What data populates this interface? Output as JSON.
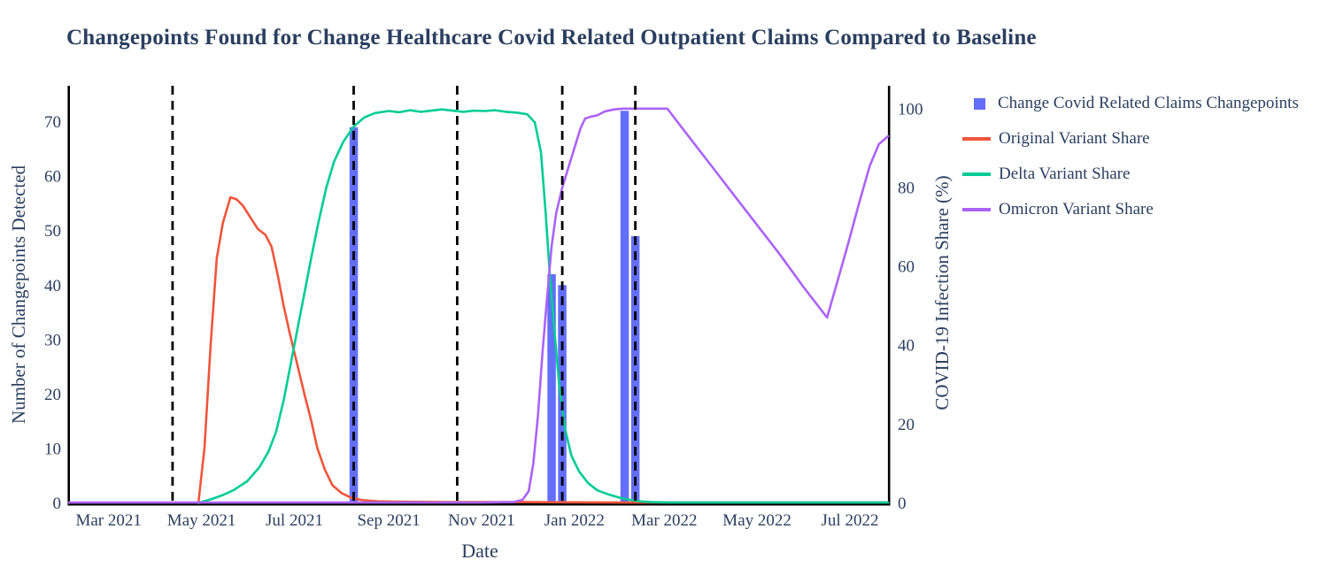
{
  "title": "Changepoints Found for Change Healthcare Covid Related Outpatient Claims Compared to Baseline",
  "background": "#ffffff",
  "text_color": "#2a3f5f",
  "chart_data": {
    "type": "bar+line combo, dual y-axis time series",
    "grid": false,
    "legend_position": "outside-top-right",
    "x_axis": {
      "label": "Date",
      "range": [
        "2021-02-03",
        "2022-07-26"
      ],
      "ticks": [
        {
          "date": "2021-03-01",
          "label": "Mar 2021"
        },
        {
          "date": "2021-05-01",
          "label": "May 2021"
        },
        {
          "date": "2021-07-01",
          "label": "Jul 2021"
        },
        {
          "date": "2021-09-01",
          "label": "Sep 2021"
        },
        {
          "date": "2021-11-01",
          "label": "Nov 2021"
        },
        {
          "date": "2022-01-01",
          "label": "Jan 2022"
        },
        {
          "date": "2022-03-01",
          "label": "Mar 2022"
        },
        {
          "date": "2022-05-01",
          "label": "May 2022"
        },
        {
          "date": "2022-07-01",
          "label": "Jul 2022"
        }
      ]
    },
    "y_left": {
      "label": "Number of Changepoints Detected",
      "range": [
        0,
        76.6
      ],
      "ticks": [
        0,
        10,
        20,
        30,
        40,
        50,
        60,
        70
      ]
    },
    "y_right": {
      "label": "COVID-19 Infection Share (%)",
      "range": [
        0,
        105.8
      ],
      "ticks": [
        0,
        20,
        40,
        60,
        80,
        100
      ]
    },
    "bars": {
      "name": "Change Covid Related Claims Changepoints",
      "color": "#636EFA",
      "axis": "left",
      "width_days": 5.5,
      "points": [
        [
          "2021-08-09",
          69
        ],
        [
          "2021-12-17",
          42
        ],
        [
          "2021-12-24",
          40
        ],
        [
          "2022-02-03",
          72
        ],
        [
          "2022-02-10",
          49
        ]
      ]
    },
    "changepoint_lines": {
      "style": "black dashed vertical line",
      "dates": [
        "2021-04-12",
        "2021-08-09",
        "2021-10-16",
        "2021-12-24",
        "2022-02-10"
      ]
    },
    "series": [
      {
        "id": "original-variant",
        "name": "Original Variant Share",
        "color": "#EF553B",
        "axis": "right",
        "points": [
          [
            "2021-04-29",
            0
          ],
          [
            "2021-05-03",
            14
          ],
          [
            "2021-05-07",
            40
          ],
          [
            "2021-05-11",
            62
          ],
          [
            "2021-05-15",
            71
          ],
          [
            "2021-05-20",
            77.5
          ],
          [
            "2021-05-24",
            77
          ],
          [
            "2021-05-28",
            75.5
          ],
          [
            "2021-06-02",
            72.5
          ],
          [
            "2021-06-07",
            69.5
          ],
          [
            "2021-06-12",
            68
          ],
          [
            "2021-06-16",
            65
          ],
          [
            "2021-06-20",
            58
          ],
          [
            "2021-06-24",
            50
          ],
          [
            "2021-06-28",
            43
          ],
          [
            "2021-07-03",
            35
          ],
          [
            "2021-07-08",
            27
          ],
          [
            "2021-07-12",
            21
          ],
          [
            "2021-07-16",
            14
          ],
          [
            "2021-07-21",
            8.5
          ],
          [
            "2021-07-26",
            4.5
          ],
          [
            "2021-08-01",
            2.5
          ],
          [
            "2021-08-08",
            1.2
          ],
          [
            "2021-08-15",
            0.7
          ],
          [
            "2021-08-25",
            0.4
          ],
          [
            "2021-09-10",
            0.3
          ],
          [
            "2021-10-15",
            0.2
          ],
          [
            "2021-12-01",
            0.2
          ],
          [
            "2022-02-01",
            0.1
          ],
          [
            "2022-05-01",
            0.1
          ],
          [
            "2022-07-26",
            0.1
          ]
        ]
      },
      {
        "id": "delta-variant",
        "name": "Delta Variant Share",
        "color": "#00CC96",
        "axis": "right",
        "points": [
          [
            "2021-04-29",
            0
          ],
          [
            "2021-05-08",
            1
          ],
          [
            "2021-05-15",
            2
          ],
          [
            "2021-05-22",
            3.2
          ],
          [
            "2021-05-31",
            5.5
          ],
          [
            "2021-06-08",
            9
          ],
          [
            "2021-06-14",
            13
          ],
          [
            "2021-06-19",
            18
          ],
          [
            "2021-06-24",
            26
          ],
          [
            "2021-06-28",
            34
          ],
          [
            "2021-07-02",
            42
          ],
          [
            "2021-07-07",
            52
          ],
          [
            "2021-07-12",
            62
          ],
          [
            "2021-07-17",
            71.5
          ],
          [
            "2021-07-22",
            80
          ],
          [
            "2021-07-27",
            86.5
          ],
          [
            "2021-08-02",
            91.5
          ],
          [
            "2021-08-09",
            95.5
          ],
          [
            "2021-08-16",
            97.8
          ],
          [
            "2021-08-23",
            98.9
          ],
          [
            "2021-09-01",
            99.4
          ],
          [
            "2021-09-08",
            99.1
          ],
          [
            "2021-09-15",
            99.6
          ],
          [
            "2021-09-22",
            99.2
          ],
          [
            "2021-09-29",
            99.5
          ],
          [
            "2021-10-06",
            99.8
          ],
          [
            "2021-10-13",
            99.5
          ],
          [
            "2021-10-20",
            99.2
          ],
          [
            "2021-10-27",
            99.5
          ],
          [
            "2021-11-03",
            99.4
          ],
          [
            "2021-11-10",
            99.6
          ],
          [
            "2021-11-17",
            99.2
          ],
          [
            "2021-11-24",
            99.0
          ],
          [
            "2021-12-01",
            98.6
          ],
          [
            "2021-12-06",
            96.5
          ],
          [
            "2021-12-10",
            89
          ],
          [
            "2021-12-13",
            74
          ],
          [
            "2021-12-16",
            57
          ],
          [
            "2021-12-19",
            43
          ],
          [
            "2021-12-22",
            30
          ],
          [
            "2021-12-26",
            18.5
          ],
          [
            "2021-12-30",
            12
          ],
          [
            "2022-01-04",
            8
          ],
          [
            "2022-01-10",
            5
          ],
          [
            "2022-01-16",
            3.2
          ],
          [
            "2022-01-23",
            2.2
          ],
          [
            "2022-01-30",
            1.4
          ],
          [
            "2022-02-06",
            0.8
          ],
          [
            "2022-02-13",
            0.4
          ],
          [
            "2022-02-20",
            0.2
          ],
          [
            "2022-03-05",
            0.1
          ],
          [
            "2022-05-01",
            0.1
          ],
          [
            "2022-07-26",
            0.1
          ]
        ]
      },
      {
        "id": "omicron-variant",
        "name": "Omicron Variant Share",
        "color": "#AB63FA",
        "axis": "right",
        "points": [
          [
            "2021-02-03",
            0.1
          ],
          [
            "2021-05-01",
            0.1
          ],
          [
            "2021-08-01",
            0.1
          ],
          [
            "2021-11-01",
            0.1
          ],
          [
            "2021-11-22",
            0.2
          ],
          [
            "2021-11-28",
            0.8
          ],
          [
            "2021-12-02",
            3
          ],
          [
            "2021-12-05",
            10
          ],
          [
            "2021-12-08",
            22
          ],
          [
            "2021-12-11",
            38
          ],
          [
            "2021-12-14",
            52
          ],
          [
            "2021-12-17",
            65
          ],
          [
            "2021-12-20",
            73.5
          ],
          [
            "2021-12-24",
            80
          ],
          [
            "2021-12-28",
            85
          ],
          [
            "2022-01-01",
            90
          ],
          [
            "2022-01-05",
            95
          ],
          [
            "2022-01-08",
            97.5
          ],
          [
            "2022-01-12",
            98
          ],
          [
            "2022-01-16",
            98.3
          ],
          [
            "2022-01-21",
            99.3
          ],
          [
            "2022-01-27",
            99.8
          ],
          [
            "2022-02-02",
            100
          ],
          [
            "2022-03-03",
            100
          ],
          [
            "2022-03-16",
            93.5
          ],
          [
            "2022-04-01",
            85.5
          ],
          [
            "2022-04-16",
            78
          ],
          [
            "2022-05-01",
            70.5
          ],
          [
            "2022-05-16",
            63
          ],
          [
            "2022-06-01",
            54.5
          ],
          [
            "2022-06-16",
            47
          ],
          [
            "2022-06-23",
            56.5
          ],
          [
            "2022-06-30",
            66
          ],
          [
            "2022-07-07",
            76
          ],
          [
            "2022-07-14",
            85.5
          ],
          [
            "2022-07-20",
            91
          ],
          [
            "2022-07-26",
            93
          ]
        ]
      }
    ],
    "legend": [
      {
        "label": "Change Covid Related Claims Changepoints",
        "marker": "square",
        "color": "#636EFA"
      },
      {
        "label": "Original Variant Share",
        "marker": "line",
        "color": "#EF553B"
      },
      {
        "label": "Delta Variant Share",
        "marker": "line",
        "color": "#00CC96"
      },
      {
        "label": "Omicron Variant Share",
        "marker": "line",
        "color": "#AB63FA"
      }
    ]
  }
}
